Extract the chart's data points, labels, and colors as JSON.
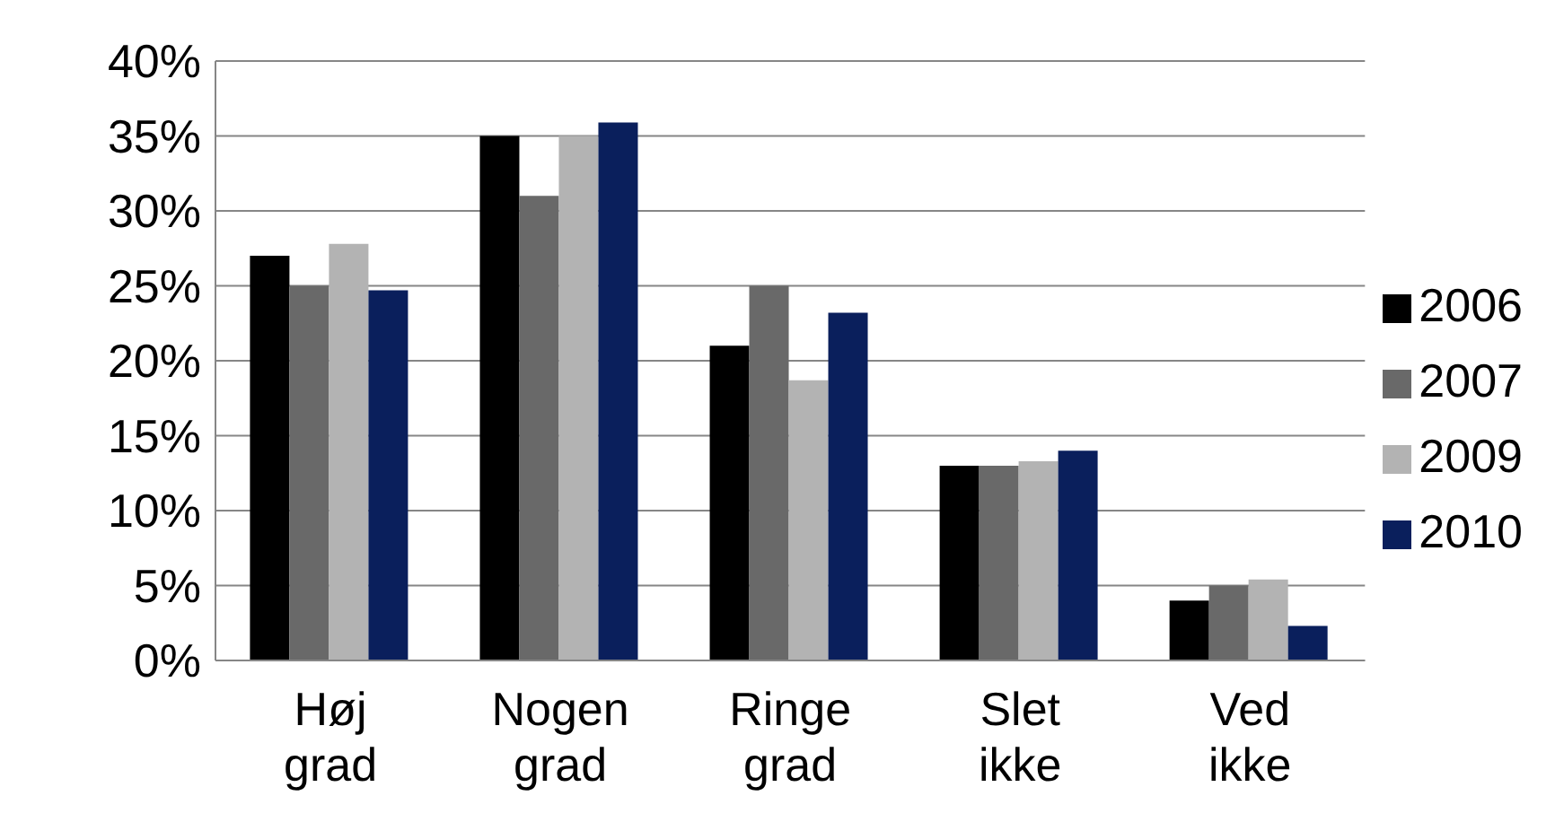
{
  "chart_data": {
    "type": "bar",
    "categories": [
      "Høj grad",
      "Nogen grad",
      "Ringe grad",
      "Slet ikke",
      "Ved ikke"
    ],
    "series": [
      {
        "name": "2006",
        "color": "#000000",
        "values": [
          27,
          35,
          21,
          13,
          4
        ]
      },
      {
        "name": "2007",
        "color": "#696969",
        "values": [
          25,
          31,
          25,
          13,
          5
        ]
      },
      {
        "name": "2009",
        "color": "#b3b3b3",
        "values": [
          27.8,
          35,
          18.7,
          13.3,
          5.4
        ]
      },
      {
        "name": "2010",
        "color": "#0a1f5c",
        "values": [
          24.7,
          35.9,
          23.2,
          14,
          2.3
        ]
      }
    ],
    "ylim": [
      0,
      40
    ],
    "yticks": [
      {
        "value": 0,
        "label": "0%"
      },
      {
        "value": 5,
        "label": "5%"
      },
      {
        "value": 10,
        "label": "10%"
      },
      {
        "value": 15,
        "label": "15%"
      },
      {
        "value": 20,
        "label": "20%"
      },
      {
        "value": 25,
        "label": "25%"
      },
      {
        "value": 30,
        "label": "30%"
      },
      {
        "value": 35,
        "label": "35%"
      },
      {
        "value": 40,
        "label": "40%"
      }
    ],
    "grid": "y",
    "legend": "right"
  }
}
